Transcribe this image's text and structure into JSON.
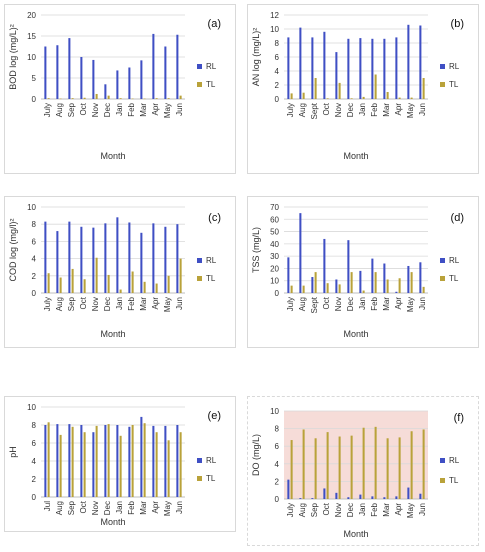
{
  "colors": {
    "RL": "#3f4fc4",
    "TL": "#b9a23a",
    "panel_f_bg": "#f6dcd8",
    "grid": "#d9d9d9",
    "axis": "#bfbfbf",
    "text": "#333333"
  },
  "chart_data": [
    {
      "id": "a",
      "panel_label": "(a)",
      "type": "bar",
      "ylabel": "BOD log (mg/L)²",
      "xlabel": "Month",
      "ylim": [
        0,
        20
      ],
      "yticks": [
        0,
        5,
        10,
        15,
        20
      ],
      "categories": [
        "July",
        "Aug",
        "Sep",
        "Oct",
        "Nov",
        "Dec",
        "Jan",
        "Feb",
        "Mar",
        "Apr",
        "May",
        "Jun"
      ],
      "series": [
        {
          "name": "RL",
          "values": [
            12.5,
            12.8,
            14.5,
            10.0,
            9.3,
            3.5,
            6.8,
            7.5,
            9.2,
            15.5,
            12.5,
            15.3
          ]
        },
        {
          "name": "TL",
          "values": [
            0.2,
            0.1,
            0.2,
            0.3,
            1.2,
            0.8,
            0.2,
            0.1,
            0.1,
            0.2,
            0.2,
            0.8
          ]
        }
      ]
    },
    {
      "id": "b",
      "panel_label": "(b)",
      "type": "bar",
      "ylabel": "AN log (mg/L)²",
      "xlabel": "Month",
      "ylim": [
        0,
        12
      ],
      "yticks": [
        0,
        2,
        4,
        6,
        8,
        10,
        12
      ],
      "categories": [
        "July",
        "Aug",
        "Sept",
        "Oct",
        "Nov",
        "Dec",
        "Jan",
        "Feb",
        "Mar",
        "Apr",
        "May",
        "Jun"
      ],
      "series": [
        {
          "name": "RL",
          "values": [
            8.8,
            10.2,
            8.8,
            9.6,
            6.7,
            8.6,
            8.7,
            8.6,
            8.6,
            8.8,
            10.6,
            10.5
          ]
        },
        {
          "name": "TL",
          "values": [
            0.8,
            0.9,
            3.0,
            0.1,
            2.3,
            0.1,
            0.3,
            3.5,
            1.0,
            0.2,
            0.2,
            3.0
          ]
        }
      ]
    },
    {
      "id": "c",
      "panel_label": "(c)",
      "type": "bar",
      "ylabel": "COD log (mg/l)²",
      "xlabel": "Month",
      "ylim": [
        0,
        10
      ],
      "yticks": [
        0,
        2,
        4,
        6,
        8,
        10
      ],
      "categories": [
        "July",
        "Aug",
        "Sep",
        "Oct",
        "Nov",
        "Dec",
        "Jan",
        "Feb",
        "Mar",
        "Apr",
        "May",
        "Jun"
      ],
      "series": [
        {
          "name": "RL",
          "values": [
            8.3,
            7.2,
            8.3,
            7.7,
            7.6,
            8.1,
            8.8,
            8.2,
            7.0,
            8.1,
            7.7,
            8.0
          ]
        },
        {
          "name": "TL",
          "values": [
            2.3,
            1.8,
            2.8,
            1.6,
            4.1,
            2.1,
            0.4,
            2.5,
            1.3,
            1.1,
            2.0,
            4.0
          ]
        }
      ]
    },
    {
      "id": "d",
      "panel_label": "(d)",
      "type": "bar",
      "ylabel": "TSS (mg/L)",
      "xlabel": "Month",
      "ylim": [
        0,
        70
      ],
      "yticks": [
        0,
        10,
        20,
        30,
        40,
        50,
        60,
        70
      ],
      "categories": [
        "July",
        "Aug",
        "Sept",
        "Oct",
        "Nov",
        "Dec",
        "Jan",
        "Feb",
        "Mar",
        "Apr",
        "May",
        "Jun"
      ],
      "series": [
        {
          "name": "RL",
          "values": [
            29,
            65,
            13,
            44,
            11,
            43,
            18,
            28,
            24,
            1,
            22,
            25
          ]
        },
        {
          "name": "TL",
          "values": [
            6,
            6,
            17,
            8,
            7,
            17,
            2,
            17,
            11,
            12,
            17,
            5
          ]
        }
      ]
    },
    {
      "id": "e",
      "panel_label": "(e)",
      "type": "bar",
      "ylabel": "pH",
      "xlabel": "Month",
      "ylim": [
        0,
        10
      ],
      "yticks": [
        0,
        2,
        4,
        6,
        8,
        10
      ],
      "categories": [
        "Jul",
        "Aug",
        "Sep",
        "Oct",
        "Nov",
        "Dec",
        "Jan",
        "Feb",
        "Mar",
        "Apr",
        "May",
        "Jun"
      ],
      "series": [
        {
          "name": "RL",
          "values": [
            8.0,
            8.1,
            8.1,
            8.0,
            7.2,
            8.0,
            8.0,
            7.8,
            8.9,
            7.9,
            7.9,
            8.0
          ]
        },
        {
          "name": "TL",
          "values": [
            8.3,
            6.9,
            7.8,
            7.2,
            7.9,
            8.1,
            6.8,
            8.0,
            8.2,
            7.2,
            6.3,
            7.2
          ]
        }
      ]
    },
    {
      "id": "f",
      "panel_label": "(f)",
      "type": "bar",
      "ylabel": "DO (mg/L)",
      "xlabel": "Month",
      "ylim": [
        0,
        10
      ],
      "yticks": [
        0,
        2,
        4,
        6,
        8,
        10
      ],
      "categories": [
        "July",
        "Aug",
        "Sep",
        "Oct",
        "Nov",
        "Dec",
        "Jan",
        "Feb",
        "Mar",
        "Apr",
        "May",
        "Jun"
      ],
      "series": [
        {
          "name": "RL",
          "values": [
            2.2,
            0.1,
            0.1,
            1.2,
            0.7,
            0.2,
            0.5,
            0.3,
            0.2,
            0.3,
            1.3,
            0.6
          ]
        },
        {
          "name": "TL",
          "values": [
            6.7,
            7.9,
            6.9,
            7.6,
            7.1,
            7.2,
            8.1,
            8.2,
            6.9,
            7.0,
            7.7,
            7.9
          ]
        }
      ]
    }
  ]
}
